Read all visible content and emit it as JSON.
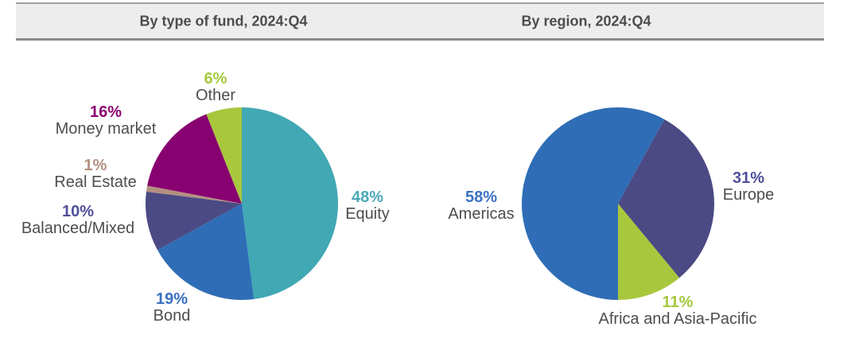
{
  "chart_data": [
    {
      "type": "pie",
      "title": "By type of fund, 2024:Q4",
      "start_angle_deg": 0,
      "direction": "clockwise",
      "legend_position": "around-slices",
      "slices": [
        {
          "label": "Equity",
          "value": 48,
          "pct": "48%",
          "color": "#41A8B4",
          "text_color": "#4BA8B8"
        },
        {
          "label": "Bond",
          "value": 19,
          "pct": "19%",
          "color": "#2F6DB6",
          "text_color": "#3A70C2"
        },
        {
          "label": "Balanced/Mixed",
          "value": 10,
          "pct": "10%",
          "color": "#4B4A84",
          "text_color": "#514F9B"
        },
        {
          "label": "Real Estate",
          "value": 1,
          "pct": "1%",
          "color": "#B39080",
          "text_color": "#B29080"
        },
        {
          "label": "Money market",
          "value": 16,
          "pct": "16%",
          "color": "#880170",
          "text_color": "#8C0471"
        },
        {
          "label": "Other",
          "value": 6,
          "pct": "6%",
          "color": "#A9C73C",
          "text_color": "#A5C93E"
        }
      ]
    },
    {
      "type": "pie",
      "title": "By region, 2024:Q4",
      "start_angle_deg": 180,
      "direction": "clockwise",
      "legend_position": "around-slices",
      "slices": [
        {
          "label": "Americas",
          "value": 58,
          "pct": "58%",
          "color": "#2F6DB6",
          "text_color": "#3A70C2"
        },
        {
          "label": "Europe",
          "value": 31,
          "pct": "31%",
          "color": "#4B4A84",
          "text_color": "#514F9B"
        },
        {
          "label": "Africa and Asia-Pacific",
          "value": 11,
          "pct": "11%",
          "color": "#A9C73C",
          "text_color": "#A5C93E"
        }
      ]
    }
  ]
}
